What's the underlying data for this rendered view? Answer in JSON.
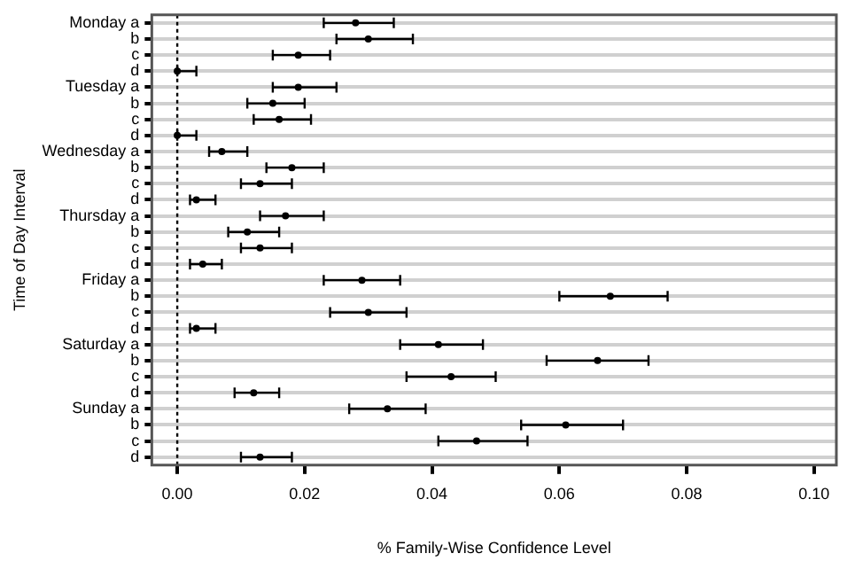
{
  "chart_data": {
    "type": "scatter",
    "orientation": "horizontal",
    "xlabel": "% Family-Wise Confidence Level",
    "ylabel": "Time of Day Interval",
    "categories": [
      "Monday a",
      "b",
      "c",
      "d",
      "Tuesday a",
      "b",
      "c",
      "d",
      "Wednesday a",
      "b",
      "c",
      "d",
      "Thursday a",
      "b",
      "c",
      "d",
      "Friday a",
      "b",
      "c",
      "d",
      "Saturday a",
      "b",
      "c",
      "d",
      "Sunday a",
      "b",
      "c",
      "d"
    ],
    "values": [
      0.028,
      0.03,
      0.019,
      0.0,
      0.019,
      0.015,
      0.016,
      0.0,
      0.007,
      0.018,
      0.013,
      0.003,
      0.017,
      0.011,
      0.013,
      0.004,
      0.029,
      0.068,
      0.03,
      0.003,
      0.041,
      0.066,
      0.043,
      0.012,
      0.033,
      0.061,
      0.047,
      0.013
    ],
    "errors": [
      [
        0.023,
        0.034
      ],
      [
        0.025,
        0.037
      ],
      [
        0.015,
        0.024
      ],
      [
        0.0,
        0.003
      ],
      [
        0.015,
        0.025
      ],
      [
        0.011,
        0.02
      ],
      [
        0.012,
        0.021
      ],
      [
        0.0,
        0.003
      ],
      [
        0.005,
        0.011
      ],
      [
        0.014,
        0.023
      ],
      [
        0.01,
        0.018
      ],
      [
        0.002,
        0.006
      ],
      [
        0.013,
        0.023
      ],
      [
        0.008,
        0.016
      ],
      [
        0.01,
        0.018
      ],
      [
        0.002,
        0.007
      ],
      [
        0.023,
        0.035
      ],
      [
        0.06,
        0.077
      ],
      [
        0.024,
        0.036
      ],
      [
        0.002,
        0.006
      ],
      [
        0.035,
        0.048
      ],
      [
        0.058,
        0.074
      ],
      [
        0.036,
        0.05
      ],
      [
        0.009,
        0.016
      ],
      [
        0.027,
        0.039
      ],
      [
        0.054,
        0.07
      ],
      [
        0.041,
        0.055
      ],
      [
        0.01,
        0.018
      ]
    ],
    "color": "#000000",
    "marker": "circle",
    "grid": "y",
    "xlim": [
      -0.004,
      0.1035
    ],
    "xticks": [
      {
        "value": 0,
        "label": "0.00"
      },
      {
        "value": 0.02,
        "label": "0.02"
      },
      {
        "value": 0.04,
        "label": "0.04"
      },
      {
        "value": 0.06,
        "label": "0.06"
      },
      {
        "value": 0.08,
        "label": "0.08"
      },
      {
        "value": 0.1,
        "label": "0.10"
      }
    ],
    "ref_lines": [
      {
        "axis": "x",
        "value": 0,
        "line_style": "dotted",
        "color": "#000000"
      }
    ]
  }
}
